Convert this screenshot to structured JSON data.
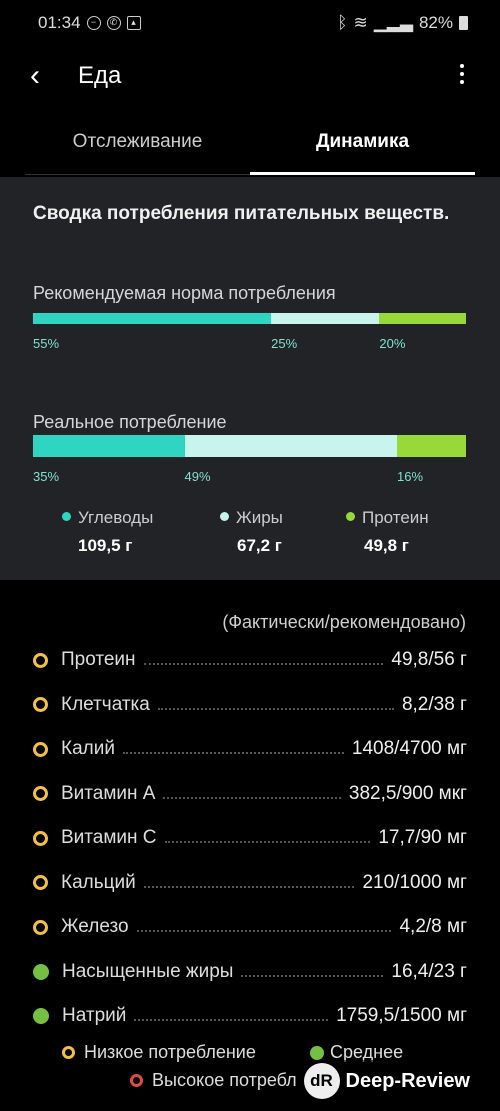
{
  "status_bar": {
    "time": "01:34",
    "battery": "82%"
  },
  "header": {
    "title": "Еда"
  },
  "tabs": [
    {
      "label": "Отслеживание"
    },
    {
      "label": "Динамика"
    }
  ],
  "summary": {
    "title": "Сводка потребления питательных веществ.",
    "recommended": {
      "label": "Рекомендуемая норма потребления",
      "segments": [
        {
          "value": 55,
          "label": "55%",
          "color": "#2fd5c0"
        },
        {
          "value": 25,
          "label": "25%",
          "color": "#c8f4ee"
        },
        {
          "value": 20,
          "label": "20%",
          "color": "#98d93a"
        }
      ]
    },
    "actual": {
      "label": "Реальное потребление",
      "segments": [
        {
          "value": 35,
          "label": "35%",
          "color": "#2fd5c0"
        },
        {
          "value": 49,
          "label": "49%",
          "color": "#c8f4ee"
        },
        {
          "value": 16,
          "label": "16%",
          "color": "#98d93a"
        }
      ]
    },
    "legend": [
      {
        "name": "Углеводы",
        "value": "109,5 г",
        "color": "#2fd5c0"
      },
      {
        "name": "Жиры",
        "value": "67,2 г",
        "color": "#c8f4ee"
      },
      {
        "name": "Протеин",
        "value": "49,8 г",
        "color": "#98d93a"
      }
    ]
  },
  "nutrients": {
    "header": "(Фактически/рекомендовано)",
    "items": [
      {
        "name": "Протеин",
        "value": "49,8/56 г",
        "status": "low"
      },
      {
        "name": "Клетчатка",
        "value": "8,2/38 г",
        "status": "low"
      },
      {
        "name": "Калий",
        "value": "1408/4700 мг",
        "status": "low"
      },
      {
        "name": "Витамин A",
        "value": "382,5/900 мкг",
        "status": "low"
      },
      {
        "name": "Витамин C",
        "value": "17,7/90 мг",
        "status": "low"
      },
      {
        "name": "Кальций",
        "value": "210/1000 мг",
        "status": "low"
      },
      {
        "name": "Железо",
        "value": "4,2/8 мг",
        "status": "low"
      },
      {
        "name": "Насыщенные жиры",
        "value": "16,4/23 г",
        "status": "medium"
      },
      {
        "name": "Натрий",
        "value": "1759,5/1500 мг",
        "status": "medium"
      }
    ]
  },
  "footer_legend": {
    "low": "Низкое потребление",
    "medium": "Среднее",
    "high": "Высокое потребл"
  },
  "watermark": {
    "logo": "dR",
    "text": "Deep-Review"
  }
}
